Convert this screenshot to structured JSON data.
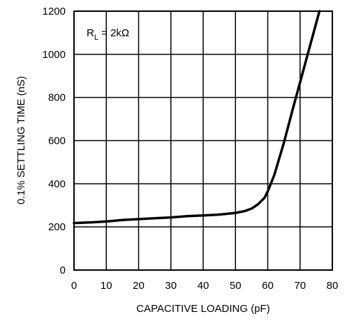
{
  "chart_data": {
    "type": "line",
    "title": "",
    "xlabel": "CAPACITIVE LOADING (pF)",
    "ylabel": "0.1% SETTLING TIME (nS)",
    "xlim": [
      0,
      80
    ],
    "ylim": [
      0,
      1200
    ],
    "x_ticks": [
      "0",
      "10",
      "20",
      "30",
      "40",
      "50",
      "60",
      "70",
      "80"
    ],
    "y_ticks": [
      "0",
      "200",
      "400",
      "600",
      "800",
      "1000",
      "1200"
    ],
    "grid": true,
    "annotation": {
      "prefix": "R",
      "subscript": "L",
      "suffix": " = 2kΩ"
    },
    "series": [
      {
        "color": "#000000",
        "x": [
          0,
          5,
          10,
          15,
          20,
          25,
          30,
          35,
          40,
          45,
          50,
          53,
          55,
          57,
          59,
          60,
          62,
          65,
          68,
          70,
          72,
          74,
          76
        ],
        "y": [
          218,
          221,
          225,
          232,
          236,
          240,
          244,
          250,
          253,
          257,
          265,
          274,
          285,
          305,
          335,
          365,
          440,
          590,
          760,
          870,
          980,
          1090,
          1200
        ]
      }
    ]
  }
}
